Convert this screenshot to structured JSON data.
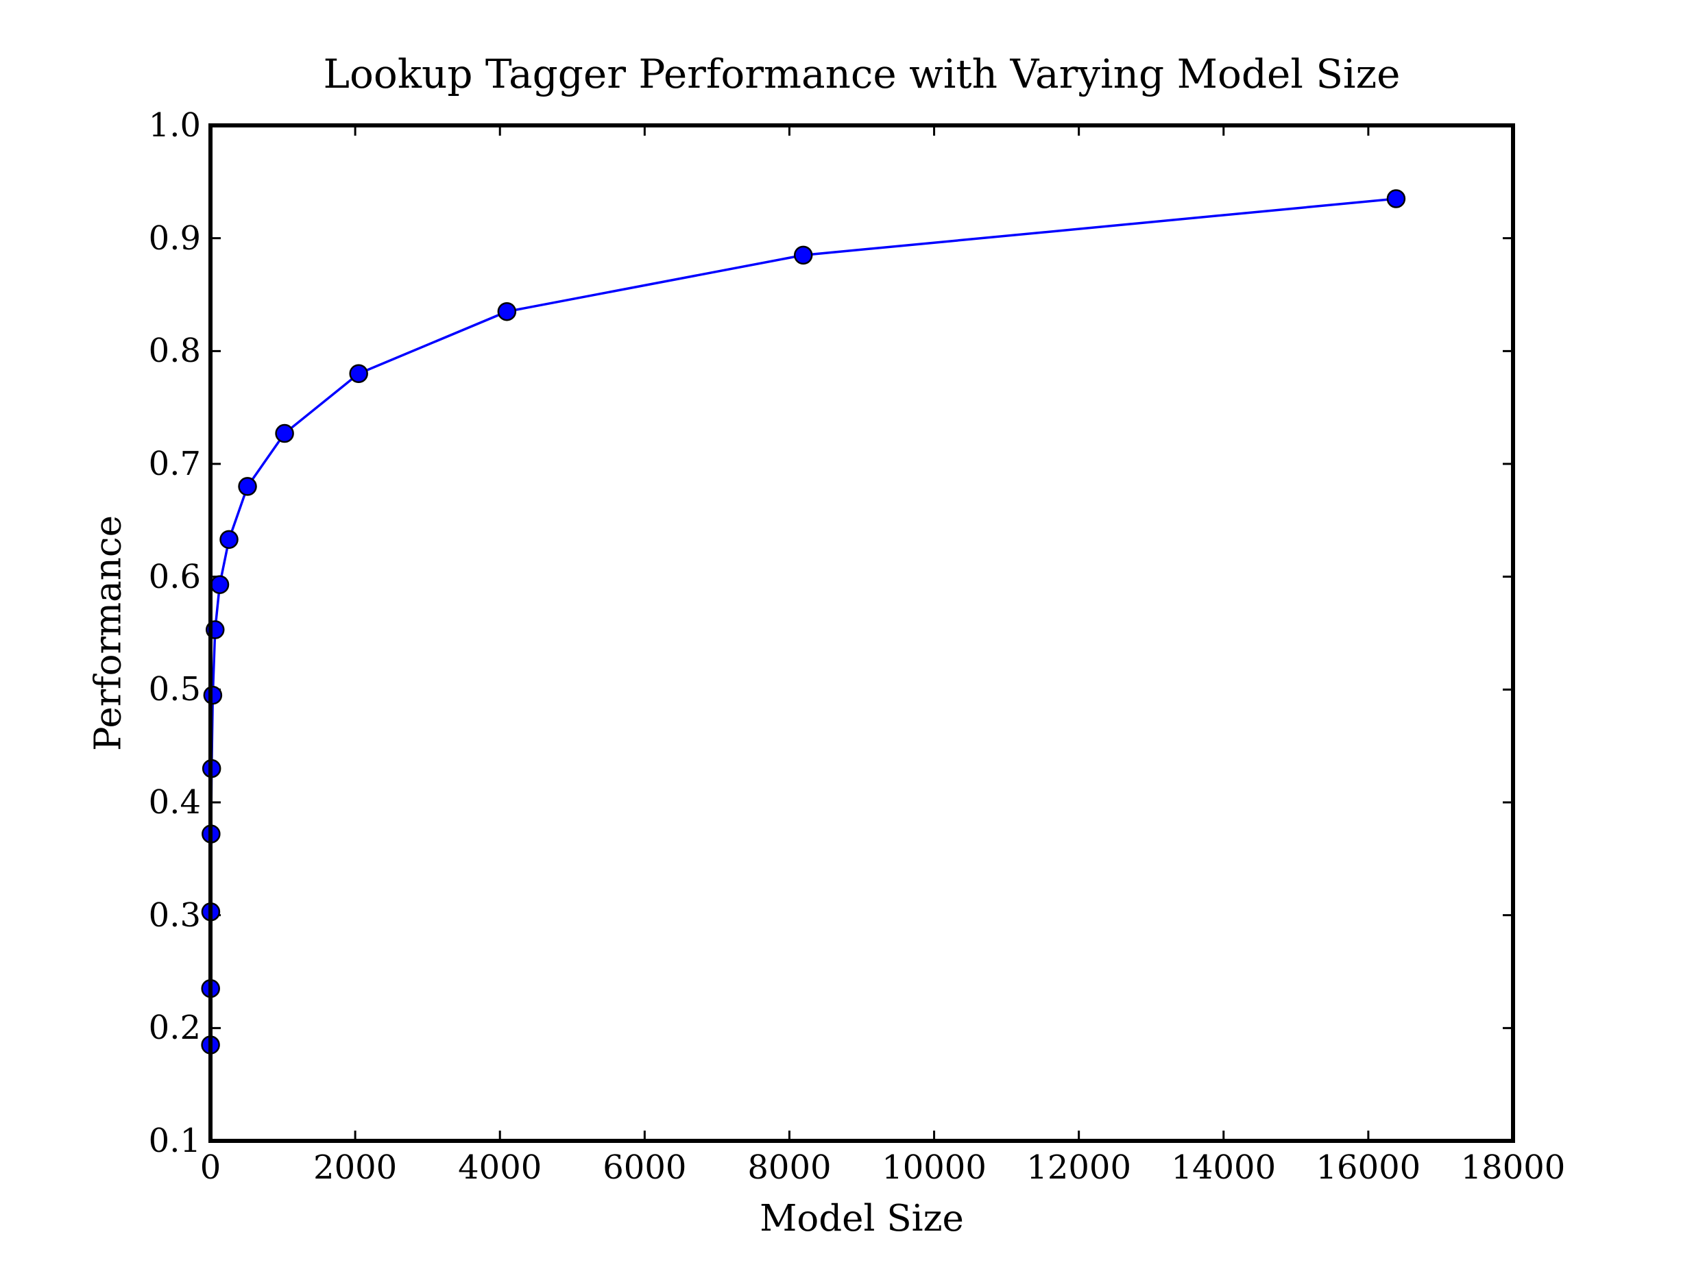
{
  "figure": {
    "background": "#ffffff"
  },
  "chart_data": {
    "type": "line",
    "title": "Lookup Tagger Performance with Varying Model Size",
    "xlabel": "Model Size",
    "ylabel": "Performance",
    "x": [
      1,
      2,
      4,
      8,
      16,
      32,
      64,
      128,
      256,
      512,
      1024,
      2048,
      4096,
      8192,
      16384
    ],
    "y": [
      0.185,
      0.235,
      0.303,
      0.372,
      0.43,
      0.495,
      0.553,
      0.593,
      0.633,
      0.68,
      0.727,
      0.78,
      0.835,
      0.885,
      0.935
    ],
    "xlim": [
      0,
      18000
    ],
    "ylim": [
      0.1,
      1.0
    ],
    "x_tick_labels": [
      "0",
      "2000",
      "4000",
      "6000",
      "8000",
      "10000",
      "12000",
      "14000",
      "16000",
      "18000"
    ],
    "y_tick_labels": [
      "1.0",
      "0.9",
      "0.8",
      "0.7",
      "0.6",
      "0.5",
      "0.4",
      "0.3",
      "0.2",
      "0.1"
    ],
    "grid": false,
    "legend": "none",
    "line_color": "#0000ff",
    "marker": "circle",
    "marker_fill": "#0000ff",
    "marker_edge": "#000000",
    "axis_color": "#000000",
    "tick_direction": "in"
  }
}
